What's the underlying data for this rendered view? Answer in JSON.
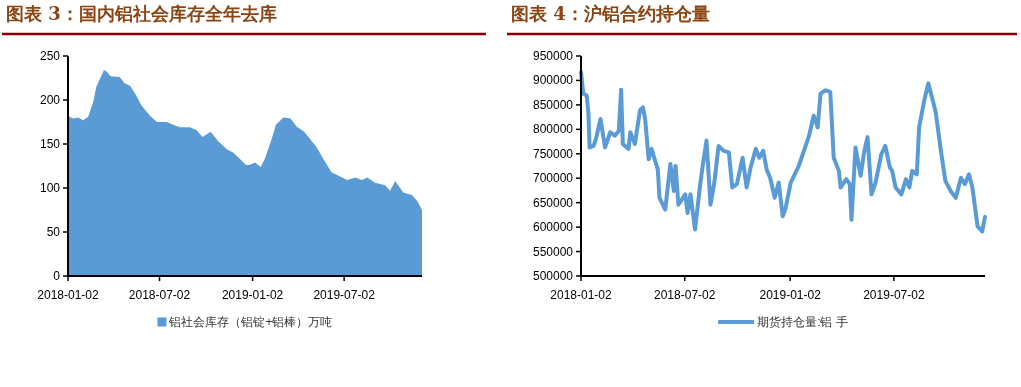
{
  "chart_data": [
    {
      "type": "area",
      "title": "图表 3：国内铝社会库存全年去库",
      "legend": "bottom",
      "xlim": [
        "2018-01-02",
        "2019-12-03"
      ],
      "xticks": [
        "2018-01-02",
        "2018-07-02",
        "2019-01-02",
        "2019-07-02"
      ],
      "ylim": [
        0,
        250
      ],
      "yticks": [
        0,
        50,
        100,
        150,
        200,
        250
      ],
      "series": [
        {
          "name": "铝社会库存（铝锭+铝棒）万吨",
          "color": "#5b9bd5",
          "x": [
            "2018-01-02",
            "2018-01-12",
            "2018-01-22",
            "2018-02-01",
            "2018-02-11",
            "2018-02-21",
            "2018-02-27",
            "2018-03-14",
            "2018-03-20",
            "2018-03-27",
            "2018-04-14",
            "2018-04-24",
            "2018-05-05",
            "2018-05-17",
            "2018-05-27",
            "2018-06-13",
            "2018-06-27",
            "2018-07-16",
            "2018-07-29",
            "2018-08-11",
            "2018-08-31",
            "2018-09-13",
            "2018-09-25",
            "2018-10-11",
            "2018-10-26",
            "2018-11-12",
            "2018-11-25",
            "2018-12-08",
            "2018-12-20",
            "2018-12-26",
            "2019-01-07",
            "2019-01-18",
            "2019-01-26",
            "2019-02-09",
            "2019-02-17",
            "2019-03-04",
            "2019-03-18",
            "2019-03-30",
            "2019-04-14",
            "2019-04-29",
            "2019-05-09",
            "2019-05-22",
            "2019-06-07",
            "2019-06-24",
            "2019-07-08",
            "2019-07-24",
            "2019-08-06",
            "2019-08-17",
            "2019-09-01",
            "2019-09-21",
            "2019-10-01",
            "2019-10-11",
            "2019-10-27",
            "2019-11-13",
            "2019-11-24",
            "2019-12-03"
          ],
          "values": [
            182,
            179,
            180,
            177,
            181,
            198,
            215,
            234,
            232,
            227,
            226,
            219,
            216,
            205,
            194,
            182,
            175,
            175,
            172,
            169,
            169,
            166,
            158,
            164,
            153,
            144,
            140,
            133,
            126,
            126,
            129,
            124,
            133,
            156,
            172,
            180,
            179,
            170,
            164,
            153,
            146,
            133,
            118,
            113,
            109,
            112,
            109,
            112,
            106,
            103,
            97,
            108,
            95,
            92,
            85,
            75
          ]
        }
      ]
    },
    {
      "type": "line",
      "title": "图表 4：沪铝合约持仓量",
      "legend": "bottom",
      "xlim": [
        "2018-01-02",
        "2019-12-08"
      ],
      "xticks": [
        "2018-01-02",
        "2018-07-02",
        "2019-01-02",
        "2019-07-02"
      ],
      "ylim": [
        500000,
        950000
      ],
      "yticks": [
        500000,
        550000,
        600000,
        650000,
        700000,
        750000,
        800000,
        850000,
        900000,
        950000
      ],
      "series": [
        {
          "name": "期货持仓量:铝 手",
          "color": "#5b9bd5",
          "x": [
            "2018-01-02",
            "2018-01-06",
            "2018-01-12",
            "2018-01-15",
            "2018-01-17",
            "2018-01-24",
            "2018-01-28",
            "2018-02-05",
            "2018-02-13",
            "2018-02-22",
            "2018-03-02",
            "2018-03-09",
            "2018-03-13",
            "2018-03-16",
            "2018-03-26",
            "2018-03-29",
            "2018-04-06",
            "2018-04-15",
            "2018-04-20",
            "2018-04-24",
            "2018-04-30",
            "2018-05-05",
            "2018-05-16",
            "2018-05-19",
            "2018-05-29",
            "2018-06-07",
            "2018-06-13",
            "2018-06-16",
            "2018-06-21",
            "2018-07-03",
            "2018-07-07",
            "2018-07-12",
            "2018-07-20",
            "2018-07-29",
            "2018-08-02",
            "2018-08-09",
            "2018-08-16",
            "2018-08-23",
            "2018-08-30",
            "2018-09-08",
            "2018-09-17",
            "2018-09-23",
            "2018-10-01",
            "2018-10-11",
            "2018-10-18",
            "2018-10-25",
            "2018-11-03",
            "2018-11-09",
            "2018-11-16",
            "2018-11-22",
            "2018-11-28",
            "2018-12-06",
            "2018-12-13",
            "2018-12-20",
            "2018-12-25",
            "2019-01-03",
            "2019-01-17",
            "2019-01-26",
            "2019-02-04",
            "2019-02-12",
            "2019-02-19",
            "2019-02-24",
            "2019-03-05",
            "2019-03-13",
            "2019-03-19",
            "2019-03-28",
            "2019-03-31",
            "2019-04-10",
            "2019-04-16",
            "2019-04-19",
            "2019-04-26",
            "2019-05-05",
            "2019-05-11",
            "2019-05-17",
            "2019-05-24",
            "2019-05-31",
            "2019-06-10",
            "2019-06-17",
            "2019-06-25",
            "2019-06-29",
            "2019-07-05",
            "2019-07-15",
            "2019-07-23",
            "2019-07-29",
            "2019-08-03",
            "2019-08-11",
            "2019-08-15",
            "2019-08-24",
            "2019-08-31",
            "2019-09-07",
            "2019-09-13",
            "2019-09-22",
            "2019-09-30",
            "2019-10-09",
            "2019-10-18",
            "2019-10-27",
            "2019-11-03",
            "2019-11-10",
            "2019-11-16",
            "2019-11-25",
            "2019-12-03",
            "2019-12-08"
          ],
          "values": [
            917000,
            873000,
            869000,
            832000,
            763000,
            766000,
            780000,
            821000,
            763000,
            794000,
            787000,
            797000,
            881000,
            770000,
            760000,
            794000,
            770000,
            839000,
            845000,
            821000,
            739000,
            760000,
            718000,
            660000,
            636000,
            729000,
            674000,
            725000,
            646000,
            667000,
            629000,
            667000,
            595000,
            687000,
            722000,
            777000,
            646000,
            694000,
            766000,
            756000,
            753000,
            681000,
            688000,
            742000,
            681000,
            722000,
            760000,
            742000,
            756000,
            718000,
            701000,
            660000,
            691000,
            622000,
            639000,
            691000,
            725000,
            756000,
            787000,
            828000,
            804000,
            873000,
            880000,
            876000,
            742000,
            715000,
            681000,
            698000,
            688000,
            615000,
            763000,
            705000,
            753000,
            784000,
            667000,
            691000,
            749000,
            766000,
            722000,
            715000,
            681000,
            667000,
            698000,
            681000,
            715000,
            708000,
            804000,
            859000,
            894000,
            863000,
            835000,
            756000,
            694000,
            674000,
            660000,
            701000,
            688000,
            708000,
            681000,
            602000,
            591000,
            621000
          ]
        }
      ]
    }
  ]
}
